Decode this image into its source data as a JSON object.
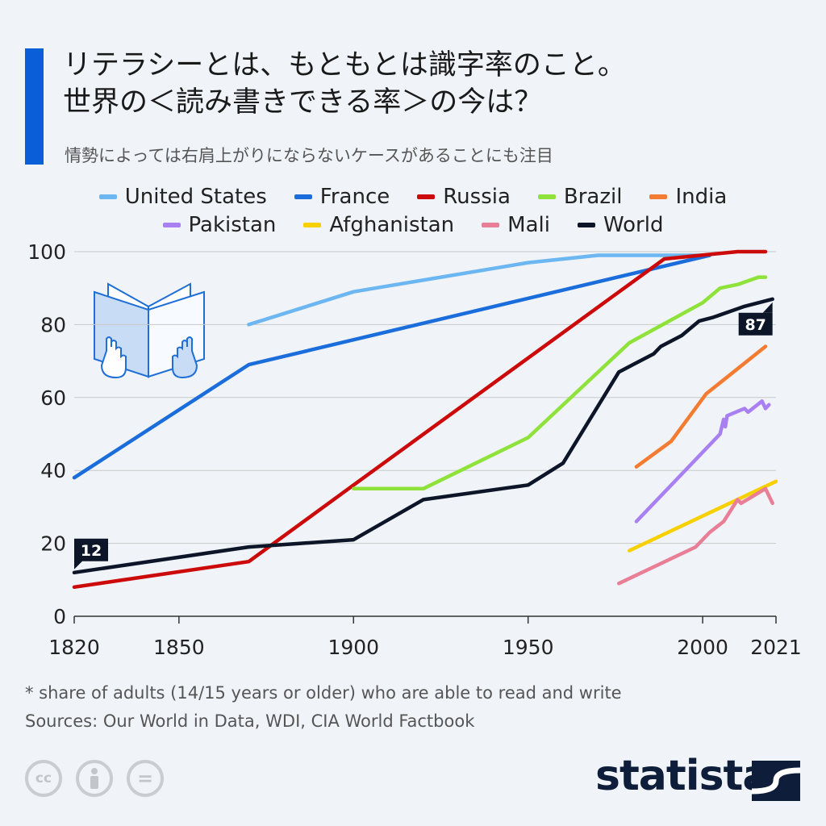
{
  "header": {
    "title": "リテラシーとは、もともとは識字率のこと。\n世界の＜読み書きできる率＞の今は？",
    "subtitle": "情勢によっては右肩上がりにならないケースがあることにも注目"
  },
  "chart_data": {
    "type": "line",
    "title": "リテラシーとは、もともとは識字率のこと。世界の＜読み書きできる率＞の今は？",
    "xlabel": "",
    "ylabel": "",
    "xlim": [
      1820,
      2021
    ],
    "ylim": [
      0,
      100
    ],
    "x_ticks": [
      1820,
      1850,
      1900,
      1950,
      2000,
      2021
    ],
    "y_ticks": [
      0,
      20,
      40,
      60,
      80,
      100
    ],
    "grid": true,
    "legend_position": "top",
    "series": [
      {
        "name": "United States",
        "color": "#6cb6f2",
        "points": [
          [
            1870,
            80
          ],
          [
            1900,
            89
          ],
          [
            1950,
            97
          ],
          [
            1970,
            99
          ],
          [
            2002,
            99
          ]
        ]
      },
      {
        "name": "France",
        "color": "#1a6ddb",
        "points": [
          [
            1820,
            38
          ],
          [
            1870,
            69
          ],
          [
            2002,
            99
          ]
        ]
      },
      {
        "name": "Russia",
        "color": "#cc0a0a",
        "points": [
          [
            1820,
            8
          ],
          [
            1870,
            15
          ],
          [
            1900,
            36
          ],
          [
            1989,
            98
          ],
          [
            2010,
            100
          ],
          [
            2018,
            100
          ]
        ]
      },
      {
        "name": "Brazil",
        "color": "#8ee23a",
        "points": [
          [
            1900,
            35
          ],
          [
            1920,
            35
          ],
          [
            1950,
            49
          ],
          [
            1979,
            75
          ],
          [
            2000,
            86
          ],
          [
            2005,
            90
          ],
          [
            2010,
            91
          ],
          [
            2016,
            93
          ],
          [
            2018,
            93
          ]
        ]
      },
      {
        "name": "India",
        "color": "#f47c32",
        "points": [
          [
            1981,
            41
          ],
          [
            1991,
            48
          ],
          [
            2001,
            61
          ],
          [
            2018,
            74
          ]
        ]
      },
      {
        "name": "Pakistan",
        "color": "#a880f2",
        "points": [
          [
            1981,
            26
          ],
          [
            2005,
            50
          ],
          [
            2006,
            54
          ],
          [
            2006.5,
            52
          ],
          [
            2007,
            55
          ],
          [
            2012,
            57
          ],
          [
            2013,
            56
          ],
          [
            2017,
            59
          ],
          [
            2018,
            57
          ],
          [
            2019,
            58
          ]
        ]
      },
      {
        "name": "Afghanistan",
        "color": "#f7d000",
        "points": [
          [
            1979,
            18
          ],
          [
            2021,
            37
          ]
        ]
      },
      {
        "name": "Mali",
        "color": "#e87f97",
        "points": [
          [
            1976,
            9
          ],
          [
            1998,
            19
          ],
          [
            2002,
            23
          ],
          [
            2006,
            26
          ],
          [
            2010,
            32
          ],
          [
            2011,
            31
          ],
          [
            2018,
            35
          ],
          [
            2020,
            31
          ]
        ]
      },
      {
        "name": "World",
        "color": "#0d1628",
        "points": [
          [
            1820,
            12
          ],
          [
            1870,
            19
          ],
          [
            1900,
            21
          ],
          [
            1920,
            32
          ],
          [
            1950,
            36
          ],
          [
            1960,
            42
          ],
          [
            1976,
            67
          ],
          [
            1980,
            69
          ],
          [
            1986,
            72
          ],
          [
            1988,
            74
          ],
          [
            1994,
            77
          ],
          [
            1999,
            81
          ],
          [
            2003,
            82
          ],
          [
            2012,
            85
          ],
          [
            2020,
            87
          ]
        ]
      }
    ],
    "annotations": [
      {
        "text": "12",
        "series": "World",
        "x": 1820
      },
      {
        "text": "87",
        "series": "World",
        "x": 2020
      }
    ]
  },
  "footer": {
    "note": "* share of adults (14/15 years or older) who are able to read and write",
    "sources": "Sources: Our World in Data, WDI, CIA World Factbook",
    "license_icons": [
      "cc",
      "by",
      "nd"
    ],
    "license_cc": "cc",
    "license_nd": "=",
    "brand": "statista"
  }
}
